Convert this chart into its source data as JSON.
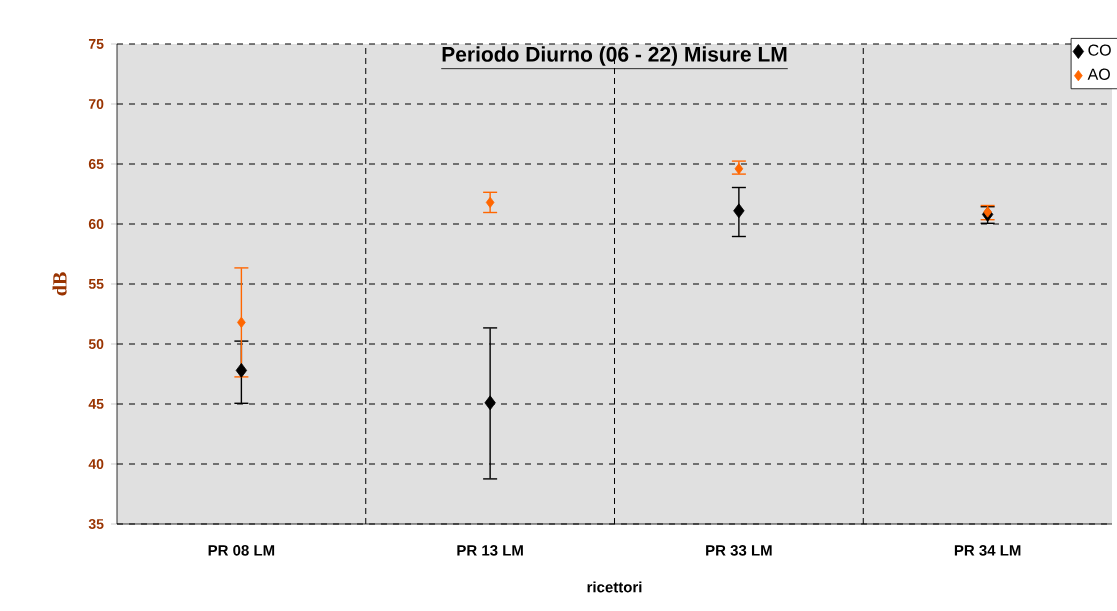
{
  "chart_data": {
    "type": "scatter",
    "title": "Periodo Diurno (06 - 22) Misure LM",
    "xlabel": "ricettori",
    "ylabel": "dB",
    "categories": [
      "PR 08 LM",
      "PR 13 LM",
      "PR 33 LM",
      "PR 34 LM"
    ],
    "series": [
      {
        "name": "CO",
        "color": "#000000",
        "values": [
          47.8,
          45.1,
          61.1,
          60.8
        ],
        "errors": [
          [
            45.0,
            50.3
          ],
          [
            38.7,
            51.4
          ],
          [
            58.9,
            63.1
          ],
          [
            60.0,
            61.5
          ]
        ]
      },
      {
        "name": "AO",
        "color": "#ff6600",
        "values": [
          51.8,
          61.8,
          64.6,
          61.0
        ],
        "errors": [
          [
            47.2,
            56.4
          ],
          [
            60.9,
            62.7
          ],
          [
            64.1,
            65.3
          ],
          [
            60.3,
            61.6
          ]
        ]
      }
    ],
    "ylim": [
      35,
      75
    ],
    "yticks": [
      35,
      40,
      45,
      50,
      55,
      60,
      65,
      70,
      75
    ],
    "grid": true,
    "legend": "top right",
    "marker": "diamond"
  }
}
